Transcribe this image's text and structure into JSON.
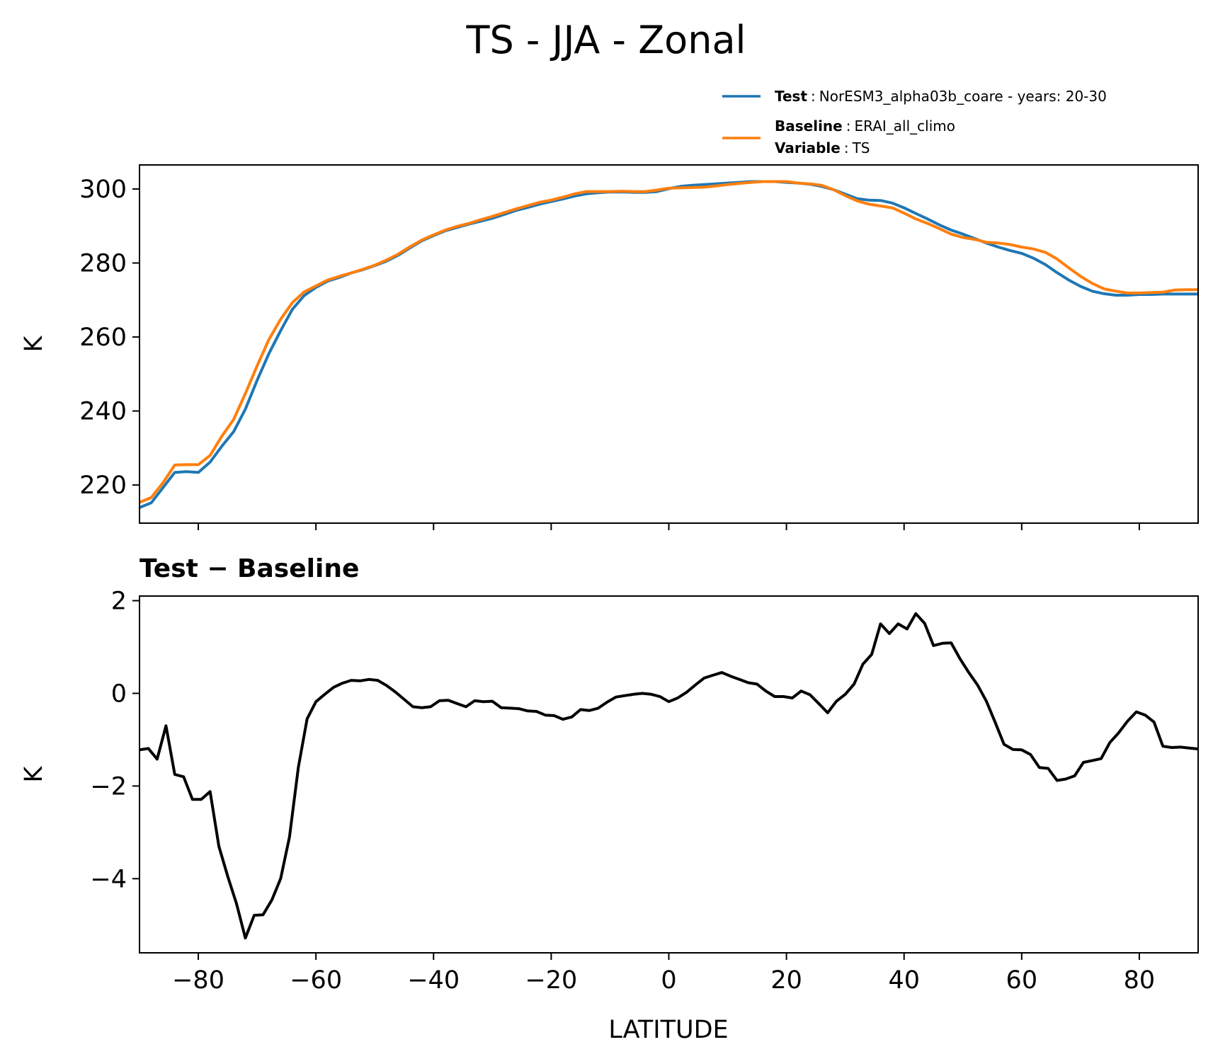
{
  "title": "TS - JJA - Zonal",
  "legend": {
    "test_label": "Test",
    "test_sep": ":",
    "test_value": "NorESM3_alpha03b_coare - years: 20-30",
    "baseline_label": "Baseline",
    "baseline_sep": ":",
    "baseline_value": "ERAI_all_climo",
    "variable_label": "Variable",
    "variable_sep": ":",
    "variable_value": "TS"
  },
  "colors": {
    "test": "#1f77b4",
    "baseline": "#ff7f0e",
    "diff": "#000000",
    "axes": "#000000"
  },
  "diff_title": "Test − Baseline",
  "chart_data": [
    {
      "type": "line",
      "ylabel": "K",
      "xlim": [
        -90,
        90
      ],
      "ylim": [
        209.7,
        306.5
      ],
      "xticks": [
        -80,
        -60,
        -40,
        -20,
        0,
        20,
        40,
        60,
        80
      ],
      "yticks": [
        220,
        240,
        260,
        280,
        300
      ],
      "ytick_labels": [
        "220",
        "240",
        "260",
        "280",
        "300"
      ],
      "show_xtick_labels": false,
      "x": [
        -90,
        -88,
        -86,
        -84,
        -82,
        -80,
        -78,
        -76,
        -74,
        -72,
        -70,
        -68,
        -66,
        -64,
        -62,
        -60,
        -58,
        -56,
        -54,
        -52,
        -50,
        -48,
        -46,
        -44,
        -42,
        -40,
        -38,
        -36,
        -34,
        -32,
        -30,
        -28,
        -26,
        -24,
        -22,
        -20,
        -18,
        -16,
        -14,
        -12,
        -10,
        -8,
        -6,
        -4,
        -2,
        0,
        2,
        4,
        6,
        8,
        10,
        12,
        14,
        16,
        18,
        20,
        22,
        24,
        26,
        28,
        30,
        32,
        34,
        36,
        38,
        40,
        42,
        44,
        46,
        48,
        50,
        52,
        54,
        56,
        58,
        60,
        62,
        64,
        66,
        68,
        70,
        72,
        74,
        76,
        78,
        80,
        82,
        84,
        86,
        88,
        90
      ],
      "series": [
        {
          "name": "Test",
          "values": [
            213.9,
            215.2,
            219.3,
            223.4,
            223.6,
            223.4,
            226.2,
            230.5,
            234.4,
            240.5,
            248.3,
            255.5,
            261.7,
            267.5,
            271.2,
            273.4,
            275.1,
            276.1,
            277.3,
            278.2,
            279.3,
            280.5,
            282.1,
            284.1,
            286.0,
            287.4,
            288.7,
            289.6,
            290.5,
            291.3,
            292.1,
            293.1,
            294.2,
            295.0,
            295.9,
            296.6,
            297.3,
            298.1,
            298.7,
            299.0,
            299.2,
            299.2,
            299.1,
            299.1,
            299.3,
            300.1,
            300.7,
            301.0,
            301.2,
            301.4,
            301.6,
            301.8,
            302.0,
            302.0,
            302.0,
            301.8,
            301.6,
            301.3,
            300.7,
            299.8,
            298.6,
            297.4,
            297.0,
            296.9,
            296.2,
            294.9,
            293.4,
            291.9,
            290.3,
            288.9,
            287.8,
            286.6,
            285.4,
            284.3,
            283.4,
            282.6,
            281.3,
            279.6,
            277.4,
            275.4,
            273.7,
            272.4,
            271.7,
            271.3,
            271.3,
            271.5,
            271.5,
            271.6,
            271.6,
            271.6,
            271.6
          ]
        },
        {
          "name": "Baseline",
          "values": [
            215.3,
            216.6,
            220.6,
            225.4,
            225.5,
            225.5,
            228.0,
            233.2,
            237.7,
            244.7,
            252.2,
            259.3,
            264.8,
            269.3,
            272.2,
            273.8,
            275.4,
            276.4,
            277.3,
            278.3,
            279.4,
            280.8,
            282.4,
            284.4,
            286.2,
            287.6,
            288.9,
            289.9,
            290.7,
            291.7,
            292.6,
            293.6,
            294.6,
            295.5,
            296.4,
            297.0,
            297.8,
            298.7,
            299.3,
            299.3,
            299.3,
            299.4,
            299.3,
            299.3,
            299.7,
            300.2,
            300.3,
            300.4,
            300.5,
            300.8,
            301.2,
            301.5,
            301.8,
            302.0,
            302.0,
            302.0,
            301.6,
            301.4,
            301.0,
            299.8,
            298.2,
            296.8,
            295.9,
            295.4,
            294.9,
            293.5,
            291.9,
            290.7,
            289.3,
            287.8,
            286.9,
            286.4,
            285.6,
            285.4,
            285.0,
            284.3,
            283.8,
            282.9,
            281.1,
            278.7,
            276.4,
            274.5,
            273.0,
            272.4,
            271.9,
            271.9,
            272.0,
            272.1,
            272.7,
            272.8,
            272.8
          ]
        }
      ]
    },
    {
      "type": "line",
      "title": "Test − Baseline",
      "ylabel": "K",
      "xlabel": "LATITUDE",
      "xlim": [
        -90,
        90
      ],
      "ylim": [
        -5.6,
        2.1
      ],
      "xticks": [
        -80,
        -60,
        -40,
        -20,
        0,
        20,
        40,
        60,
        80
      ],
      "xtick_labels": [
        "−80",
        "−60",
        "−40",
        "−20",
        "0",
        "20",
        "40",
        "60",
        "80"
      ],
      "yticks": [
        -4,
        -2,
        0,
        2
      ],
      "ytick_labels": [
        "−4",
        "−2",
        "0",
        "2"
      ],
      "x": [
        -90,
        -88.5,
        -87,
        -85.5,
        -84,
        -82.5,
        -81,
        -79.5,
        -78,
        -76.5,
        -75,
        -73.5,
        -72,
        -70.5,
        -69,
        -67.5,
        -66,
        -64.5,
        -63,
        -61.5,
        -60,
        -58.5,
        -57,
        -55.5,
        -54,
        -52.5,
        -51,
        -49.5,
        -48,
        -46.5,
        -45,
        -43.5,
        -42,
        -40.5,
        -39,
        -37.5,
        -36,
        -34.5,
        -33,
        -31.5,
        -30,
        -28.5,
        -27,
        -25.5,
        -24,
        -22.5,
        -21,
        -19.5,
        -18,
        -16.5,
        -15,
        -13.5,
        -12,
        -10.5,
        -9,
        -7.5,
        -6,
        -4.5,
        -3,
        -1.5,
        0,
        1.5,
        3,
        4.5,
        6,
        7.5,
        9,
        10.5,
        12,
        13.5,
        15,
        16.5,
        18,
        19.5,
        21,
        22.5,
        24,
        25.5,
        27,
        28.5,
        30,
        31.5,
        33,
        34.5,
        36,
        37.5,
        39,
        40.5,
        42,
        43.5,
        45,
        46.5,
        48,
        49.5,
        51,
        52.5,
        54,
        55.5,
        57,
        58.5,
        60,
        61.5,
        63,
        64.5,
        66,
        67.5,
        69,
        70.5,
        72,
        73.5,
        75,
        76.5,
        78,
        79.5,
        81,
        82.5,
        84,
        85.5,
        87,
        88.5,
        90
      ],
      "series": [
        {
          "name": "Test − Baseline",
          "values": [
            -1.22,
            -1.19,
            -1.42,
            -0.7,
            -1.75,
            -1.8,
            -2.29,
            -2.29,
            -2.12,
            -3.3,
            -3.95,
            -4.54,
            -5.28,
            -4.79,
            -4.78,
            -4.46,
            -4.0,
            -3.1,
            -1.6,
            -0.55,
            -0.18,
            -0.02,
            0.13,
            0.22,
            0.28,
            0.27,
            0.3,
            0.28,
            0.17,
            0.03,
            -0.13,
            -0.29,
            -0.31,
            -0.29,
            -0.16,
            -0.15,
            -0.22,
            -0.29,
            -0.16,
            -0.18,
            -0.17,
            -0.31,
            -0.32,
            -0.33,
            -0.38,
            -0.39,
            -0.47,
            -0.48,
            -0.56,
            -0.51,
            -0.35,
            -0.37,
            -0.32,
            -0.19,
            -0.08,
            -0.05,
            -0.02,
            0.0,
            -0.02,
            -0.07,
            -0.18,
            -0.1,
            0.02,
            0.18,
            0.33,
            0.39,
            0.45,
            0.37,
            0.3,
            0.23,
            0.2,
            0.05,
            -0.07,
            -0.07,
            -0.1,
            0.05,
            -0.03,
            -0.22,
            -0.42,
            -0.17,
            -0.02,
            0.2,
            0.63,
            0.84,
            1.5,
            1.29,
            1.5,
            1.39,
            1.72,
            1.51,
            1.03,
            1.08,
            1.09,
            0.75,
            0.45,
            0.18,
            -0.17,
            -0.63,
            -1.1,
            -1.21,
            -1.22,
            -1.32,
            -1.6,
            -1.62,
            -1.88,
            -1.85,
            -1.78,
            -1.49,
            -1.45,
            -1.41,
            -1.06,
            -0.85,
            -0.6,
            -0.4,
            -0.47,
            -0.62,
            -1.14,
            -1.17,
            -1.16,
            -1.18,
            -1.2
          ]
        }
      ]
    }
  ]
}
